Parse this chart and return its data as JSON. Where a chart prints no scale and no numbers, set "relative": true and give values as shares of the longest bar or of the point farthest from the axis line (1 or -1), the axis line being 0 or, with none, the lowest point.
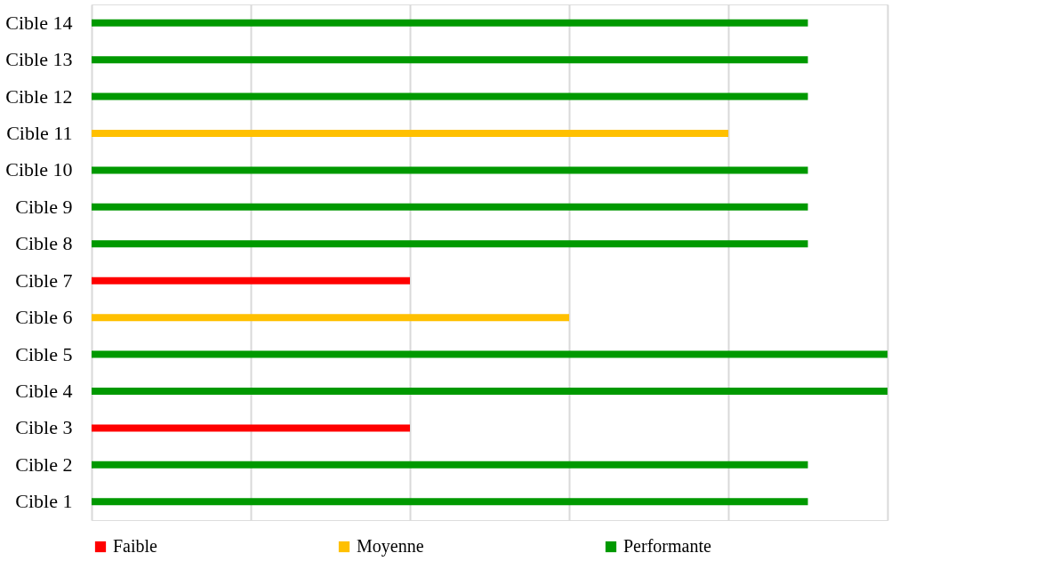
{
  "chart_data": {
    "type": "bar",
    "orientation": "horizontal",
    "relative": true,
    "grid": "x",
    "legend": "bottom",
    "categories": [
      "Cible 14",
      "Cible 13",
      "Cible 12",
      "Cible 11",
      "Cible 10",
      "Cible 9",
      "Cible 8",
      "Cible 7",
      "Cible 6",
      "Cible 5",
      "Cible 4",
      "Cible 3",
      "Cible 2",
      "Cible 1"
    ],
    "series": [
      {
        "name": "Faible",
        "color": "#ff0000",
        "values": [
          null,
          null,
          null,
          null,
          null,
          null,
          null,
          0.4,
          null,
          null,
          null,
          0.4,
          null,
          null
        ]
      },
      {
        "name": "Moyenne",
        "color": "#ffc000",
        "values": [
          null,
          null,
          null,
          0.8,
          null,
          null,
          null,
          null,
          0.6,
          null,
          null,
          null,
          null,
          null
        ]
      },
      {
        "name": "Performante",
        "color": "#009900",
        "values": [
          0.9,
          0.9,
          0.9,
          null,
          0.9,
          0.9,
          0.9,
          null,
          null,
          1,
          1,
          null,
          0.9,
          0.9
        ]
      }
    ]
  }
}
